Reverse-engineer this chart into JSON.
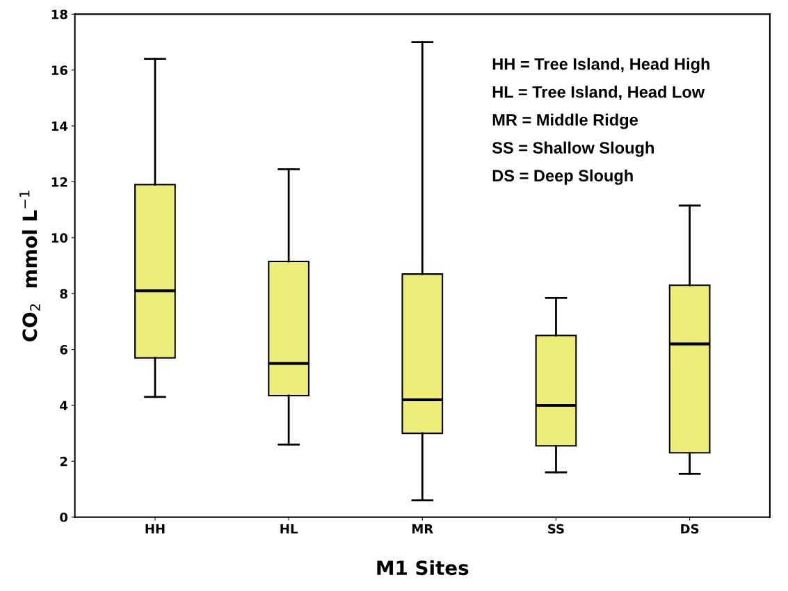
{
  "chart_data": {
    "type": "box",
    "xlabel": "M1 Sites",
    "ylabel": "CO$_{2}$  mmol L$^{−1}$",
    "categories": [
      "HH",
      "HL",
      "MR",
      "SS",
      "DS"
    ],
    "color": "#eded78",
    "ylim": [
      0,
      18
    ],
    "yticks": [
      0,
      2,
      4,
      6,
      8,
      10,
      12,
      14,
      16,
      18
    ],
    "grid": false,
    "boxes": [
      {
        "low": 4.3,
        "q1": 5.7,
        "median": 8.1,
        "q3": 11.9,
        "high": 16.4
      },
      {
        "low": 2.6,
        "q1": 4.35,
        "median": 5.5,
        "q3": 9.15,
        "high": 12.45
      },
      {
        "low": 0.6,
        "q1": 3.0,
        "median": 4.2,
        "q3": 8.7,
        "high": 17.0
      },
      {
        "low": 1.6,
        "q1": 2.55,
        "median": 4.0,
        "q3": 6.5,
        "high": 7.85
      },
      {
        "low": 1.55,
        "q1": 2.3,
        "median": 6.2,
        "q3": 8.3,
        "high": 11.15
      }
    ],
    "annotations": [
      "HH = Tree Island, Head High",
      "HL = Tree Island, Head Low",
      "MR = Middle Ridge",
      "SS = Shallow Slough",
      "DS = Deep Slough"
    ]
  }
}
